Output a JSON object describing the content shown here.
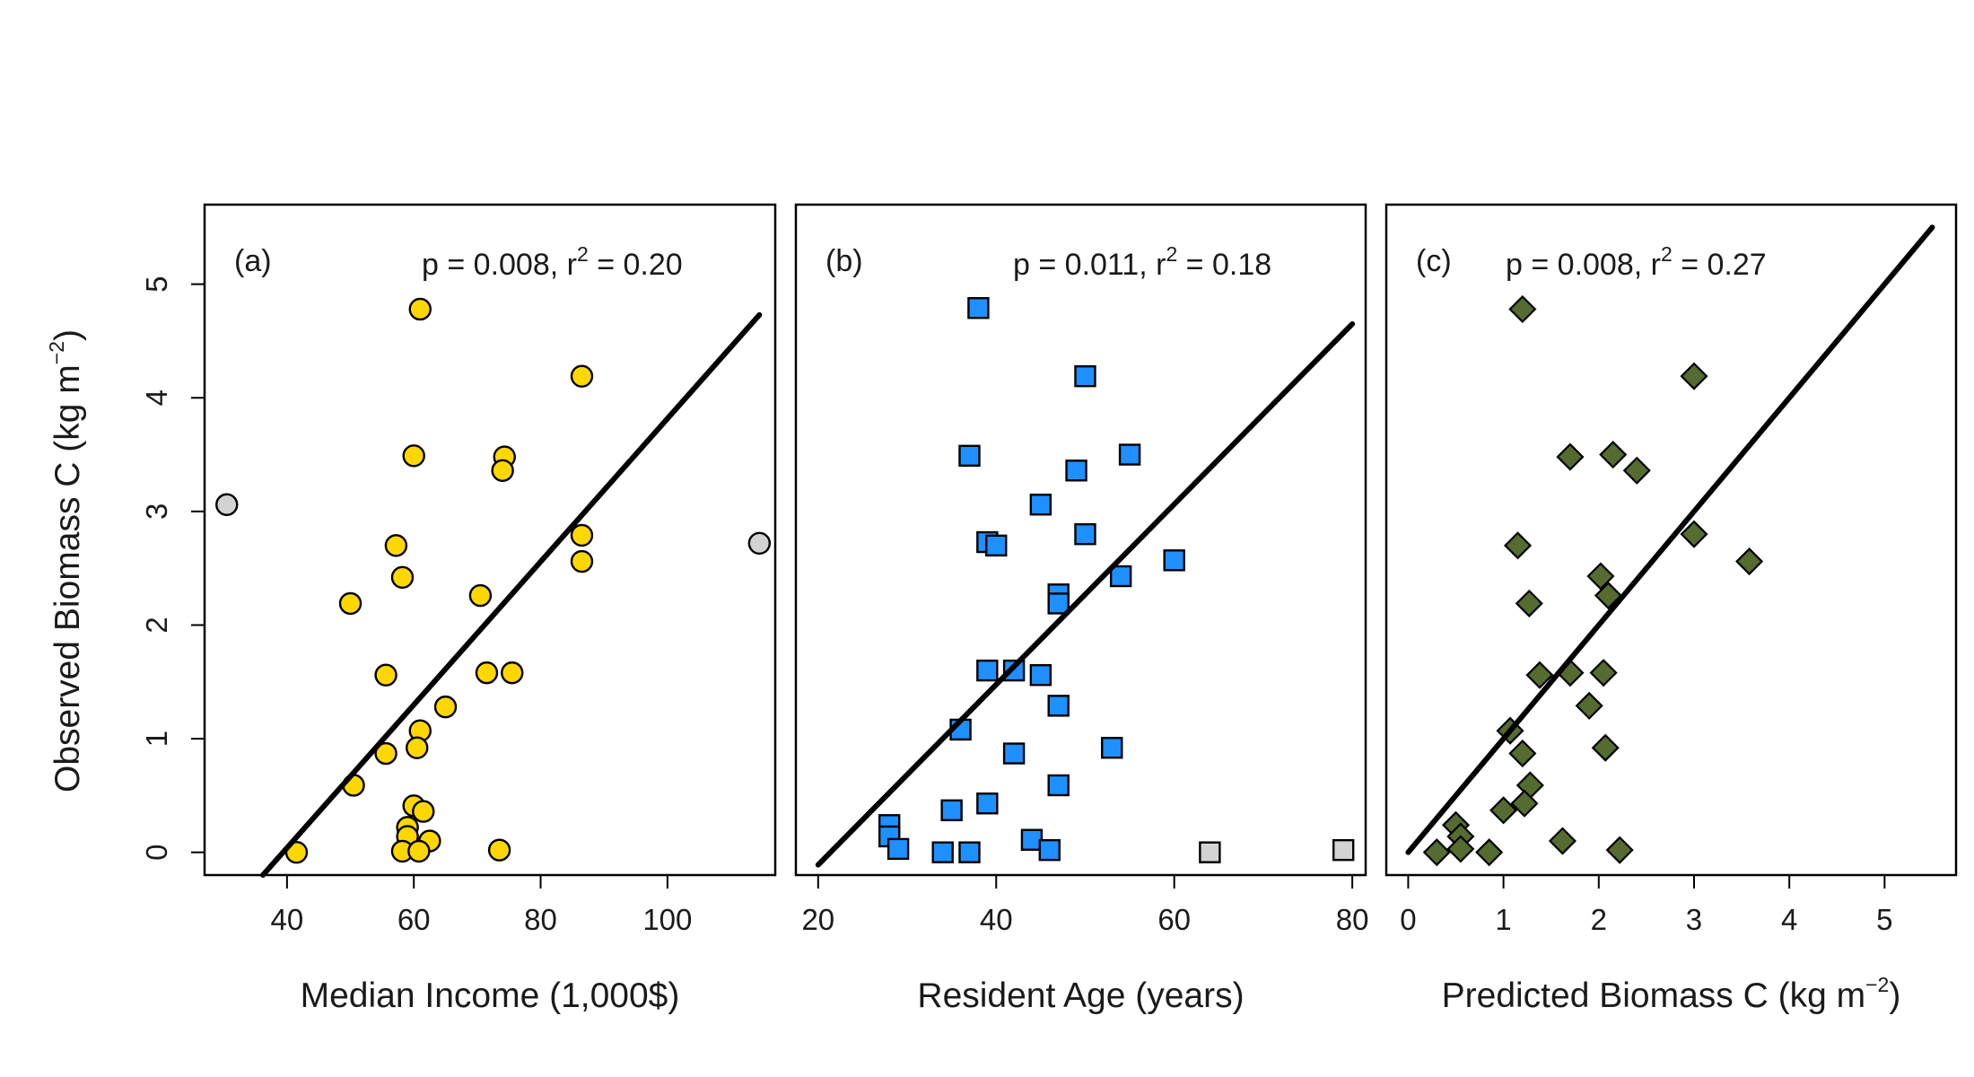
{
  "figure": {
    "ylabel": "Observed Biomass C (kg m",
    "ylabel_sup": "−2",
    "ylabel_tail": ")"
  },
  "chart_data": [
    {
      "type": "scatter",
      "panel_label": "(a)",
      "stats": {
        "p_text": "p = 0.008, r",
        "exp": "2",
        "r2_text": " = 0.20"
      },
      "xlabel": "Median Income (1,000$)",
      "xlabel_sup": "",
      "xlabel_tail": "",
      "xlim": [
        27,
        117
      ],
      "ylim": [
        -0.2,
        5.7
      ],
      "xticks": [
        40,
        60,
        80,
        100
      ],
      "yticks": [
        0,
        1,
        2,
        3,
        4,
        5
      ],
      "marker": "circle",
      "fill": "#FFD700",
      "outlier_fill": "#D3D3D3",
      "fit": {
        "x": [
          36.2,
          114.5
        ],
        "y": [
          -0.2,
          4.73
        ]
      },
      "points": [
        [
          61,
          4.78
        ],
        [
          86.5,
          4.19
        ],
        [
          60,
          3.49
        ],
        [
          74.3,
          3.48
        ],
        [
          74,
          3.36
        ],
        [
          86.5,
          2.79
        ],
        [
          57.2,
          2.7
        ],
        [
          86.5,
          2.56
        ],
        [
          58.2,
          2.42
        ],
        [
          70.5,
          2.26
        ],
        [
          50,
          2.19
        ],
        [
          71.5,
          1.58
        ],
        [
          75.5,
          1.58
        ],
        [
          55.6,
          1.56
        ],
        [
          65,
          1.28
        ],
        [
          61,
          1.07
        ],
        [
          60.5,
          0.92
        ],
        [
          55.6,
          0.87
        ],
        [
          50.5,
          0.59
        ],
        [
          60,
          0.41
        ],
        [
          61.5,
          0.36
        ],
        [
          59,
          0.22
        ],
        [
          59,
          0.14
        ],
        [
          62.5,
          0.1
        ],
        [
          58.2,
          0.01
        ],
        [
          60.8,
          0.01
        ],
        [
          41.5,
          0.0
        ],
        [
          73.5,
          0.02
        ]
      ],
      "outliers": [
        [
          30.5,
          3.06
        ],
        [
          114.5,
          2.72
        ]
      ]
    },
    {
      "type": "scatter",
      "panel_label": "(b)",
      "stats": {
        "p_text": "p = 0.011, r",
        "exp": "2",
        "r2_text": " = 0.18"
      },
      "xlabel": "Resident Age (years)",
      "xlabel_sup": "",
      "xlabel_tail": "",
      "xlim": [
        17.5,
        81.5
      ],
      "ylim": [
        -0.2,
        5.7
      ],
      "xticks": [
        20,
        40,
        60,
        80
      ],
      "yticks": [
        0,
        1,
        2,
        3,
        4,
        5
      ],
      "marker": "square",
      "fill": "#1E90FF",
      "outlier_fill": "#D3D3D3",
      "fit": {
        "x": [
          20,
          80
        ],
        "y": [
          -0.11,
          4.65
        ]
      },
      "points": [
        [
          38,
          4.79
        ],
        [
          50,
          4.19
        ],
        [
          37,
          3.49
        ],
        [
          55,
          3.5
        ],
        [
          49,
          3.36
        ],
        [
          45,
          3.06
        ],
        [
          50,
          2.8
        ],
        [
          39,
          2.73
        ],
        [
          40,
          2.7
        ],
        [
          60,
          2.57
        ],
        [
          54,
          2.43
        ],
        [
          47,
          2.27
        ],
        [
          47,
          2.19
        ],
        [
          39,
          1.6
        ],
        [
          42,
          1.6
        ],
        [
          45,
          1.56
        ],
        [
          47,
          1.29
        ],
        [
          36,
          1.08
        ],
        [
          53,
          0.92
        ],
        [
          42,
          0.87
        ],
        [
          47,
          0.59
        ],
        [
          39,
          0.43
        ],
        [
          35,
          0.37
        ],
        [
          28,
          0.24
        ],
        [
          28,
          0.14
        ],
        [
          44,
          0.11
        ],
        [
          29,
          0.03
        ],
        [
          34,
          0.0
        ],
        [
          37,
          0.0
        ],
        [
          46,
          0.02
        ]
      ],
      "outliers": [
        [
          64,
          0.0
        ],
        [
          79,
          0.02
        ]
      ]
    },
    {
      "type": "scatter",
      "panel_label": "(c)",
      "stats": {
        "p_text": "p = 0.008, r",
        "exp": "2",
        "r2_text": " = 0.27"
      },
      "xlabel": "Predicted Biomass C (kg m",
      "xlabel_sup": "−2",
      "xlabel_tail": ")",
      "xlim": [
        -0.23,
        5.75
      ],
      "ylim": [
        -0.2,
        5.7
      ],
      "xticks": [
        0,
        1,
        2,
        3,
        4,
        5
      ],
      "yticks": [
        0,
        1,
        2,
        3,
        4,
        5
      ],
      "marker": "diamond",
      "fill": "#556B2F",
      "outlier_fill": "#D3D3D3",
      "fit": {
        "x": [
          0,
          5.5
        ],
        "y": [
          0.0,
          5.5
        ]
      },
      "points": [
        [
          1.2,
          4.78
        ],
        [
          3.0,
          4.19
        ],
        [
          1.7,
          3.48
        ],
        [
          2.15,
          3.5
        ],
        [
          2.4,
          3.36
        ],
        [
          3.0,
          2.8
        ],
        [
          1.15,
          2.7
        ],
        [
          3.58,
          2.56
        ],
        [
          2.02,
          2.43
        ],
        [
          2.1,
          2.26
        ],
        [
          1.27,
          2.19
        ],
        [
          1.7,
          1.58
        ],
        [
          2.05,
          1.58
        ],
        [
          1.38,
          1.56
        ],
        [
          1.9,
          1.29
        ],
        [
          1.07,
          1.07
        ],
        [
          2.07,
          0.92
        ],
        [
          1.2,
          0.87
        ],
        [
          1.28,
          0.59
        ],
        [
          1.22,
          0.43
        ],
        [
          1.0,
          0.37
        ],
        [
          0.5,
          0.24
        ],
        [
          0.55,
          0.14
        ],
        [
          1.62,
          0.1
        ],
        [
          0.3,
          0.0
        ],
        [
          0.55,
          0.03
        ],
        [
          0.85,
          0.0
        ],
        [
          2.22,
          0.02
        ]
      ],
      "outliers": []
    }
  ]
}
